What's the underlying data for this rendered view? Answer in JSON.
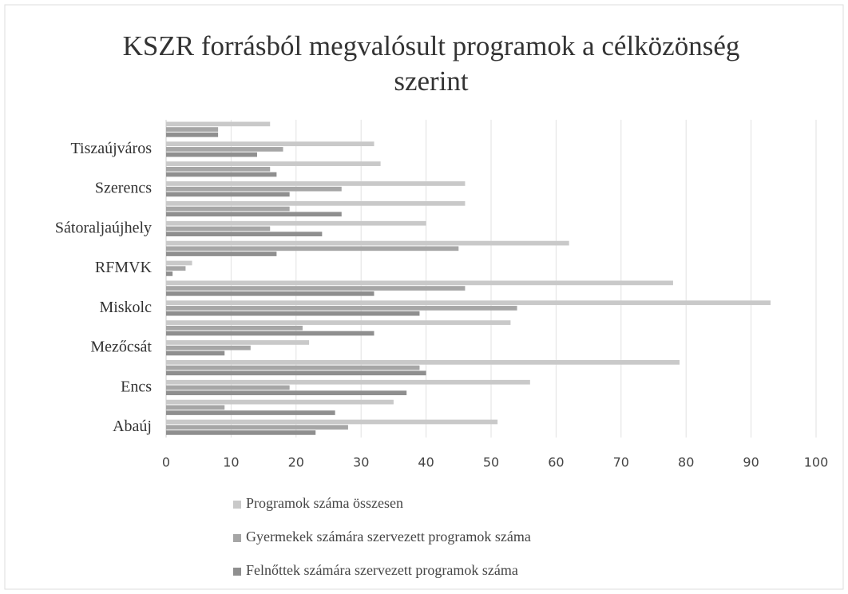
{
  "chart_data": {
    "type": "bar",
    "orientation": "horizontal",
    "title": "KSZR forrásból megvalósult  programok a célközönség szerint",
    "categories": [
      "Abaúj",
      null,
      "Encs",
      null,
      "Mezőcsát",
      null,
      "Miskolc",
      null,
      "RFMVK",
      null,
      "Sátoraljaújhely",
      null,
      "Szerencs",
      null,
      "Tiszaújváros",
      null
    ],
    "series": [
      {
        "name": "Programok száma összesen",
        "color": "#c9c9c9",
        "values": [
          51,
          35,
          56,
          79,
          22,
          53,
          93,
          78,
          4,
          62,
          40,
          46,
          46,
          33,
          32,
          16
        ]
      },
      {
        "name": "Gyermekek számára szervezett programok száma",
        "color": "#a6a6a6",
        "values": [
          28,
          9,
          19,
          39,
          13,
          21,
          54,
          46,
          3,
          45,
          16,
          19,
          27,
          16,
          18,
          8
        ]
      },
      {
        "name": "Felnőttek számára szervezett programok száma",
        "color": "#8f8f8f",
        "values": [
          23,
          26,
          37,
          40,
          9,
          32,
          39,
          32,
          1,
          17,
          24,
          27,
          19,
          17,
          14,
          8
        ]
      }
    ],
    "xlim": [
      0,
      100
    ],
    "xticks": [
      0,
      10,
      20,
      30,
      40,
      50,
      60,
      70,
      80,
      90,
      100
    ],
    "grid": true
  }
}
